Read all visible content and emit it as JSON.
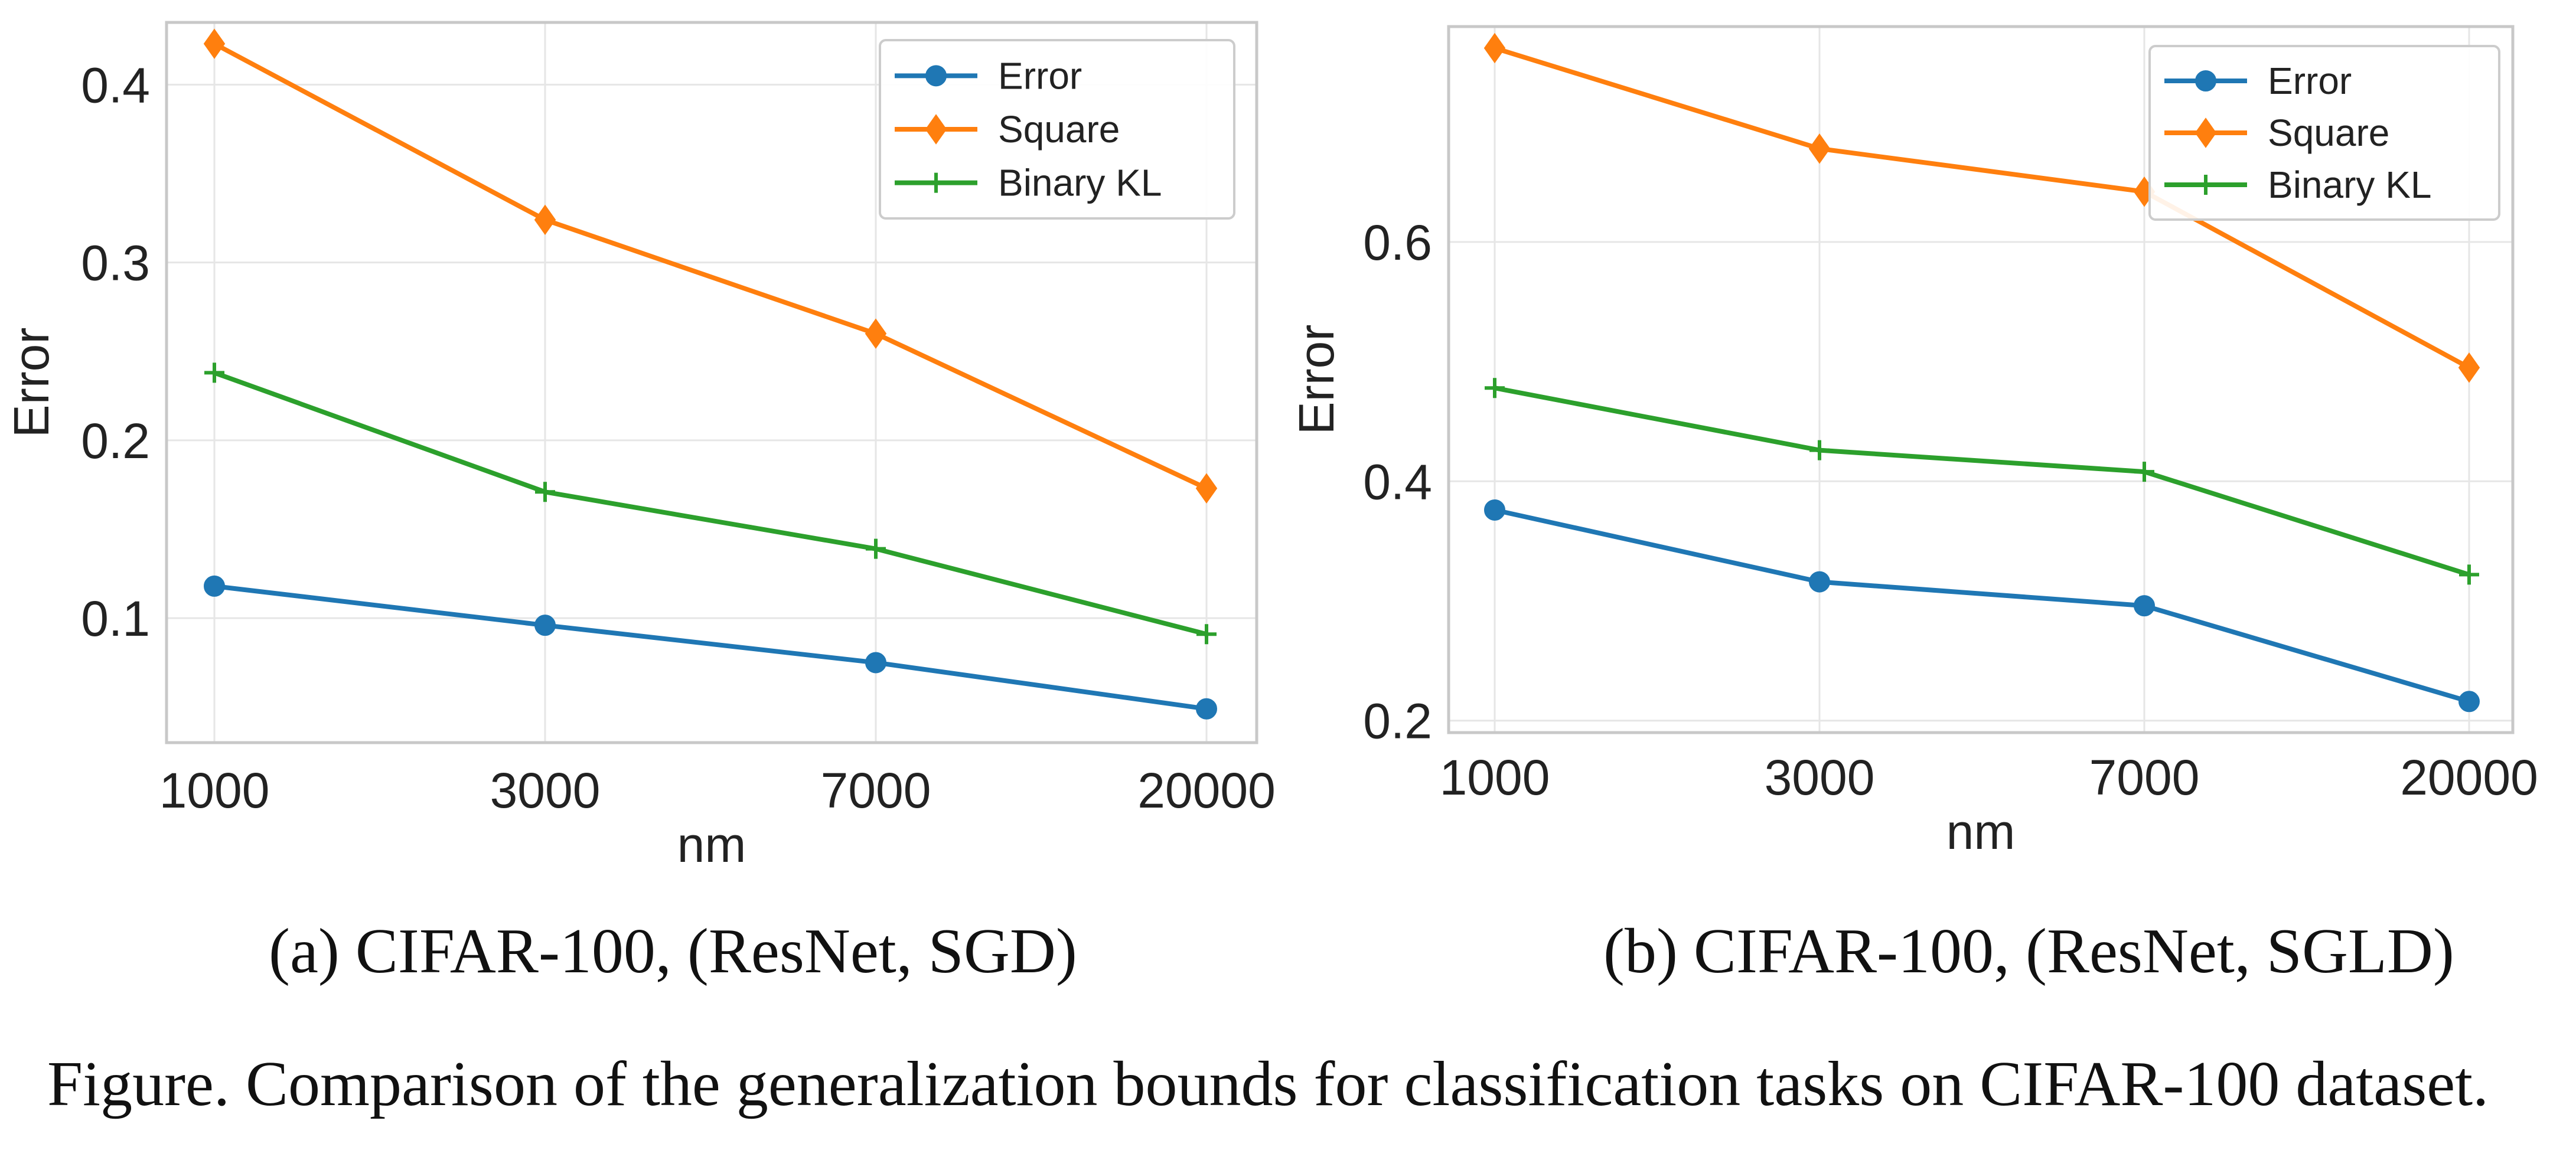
{
  "figure_caption": "Figure. Comparison of the generalization bounds for classification tasks on CIFAR-100 dataset.",
  "chart_data": [
    {
      "type": "line",
      "caption": "(a) CIFAR-100, (ResNet, SGD)",
      "xlabel": "nm",
      "ylabel": "Error",
      "x_scale": "categorical",
      "categories": [
        "1000",
        "3000",
        "7000",
        "20000"
      ],
      "ylim": [
        0.03,
        0.435
      ],
      "yticks": [
        0.1,
        0.2,
        0.3,
        0.4
      ],
      "ytick_labels": [
        "0.1",
        "0.2",
        "0.3",
        "0.4"
      ],
      "grid": true,
      "legend_position": "top-right",
      "series": [
        {
          "name": "Error",
          "color": "#1f77b4",
          "marker": "circle",
          "values": [
            0.118,
            0.096,
            0.075,
            0.049
          ]
        },
        {
          "name": "Square",
          "color": "#ff7f0e",
          "marker": "diamond",
          "values": [
            0.423,
            0.324,
            0.26,
            0.173
          ]
        },
        {
          "name": "Binary KL",
          "color": "#2ca02c",
          "marker": "plus",
          "values": [
            0.238,
            0.171,
            0.139,
            0.091
          ]
        }
      ]
    },
    {
      "type": "line",
      "caption": "(b) CIFAR-100, (ResNet, SGLD)",
      "xlabel": "nm",
      "ylabel": "Error",
      "x_scale": "categorical",
      "categories": [
        "1000",
        "3000",
        "7000",
        "20000"
      ],
      "ylim": [
        0.19,
        0.78
      ],
      "yticks": [
        0.2,
        0.4,
        0.6
      ],
      "ytick_labels": [
        "0.2",
        "0.4",
        "0.6"
      ],
      "grid": true,
      "legend_position": "top-right",
      "series": [
        {
          "name": "Error",
          "color": "#1f77b4",
          "marker": "circle",
          "values": [
            0.376,
            0.316,
            0.296,
            0.216
          ]
        },
        {
          "name": "Square",
          "color": "#ff7f0e",
          "marker": "diamond",
          "values": [
            0.762,
            0.678,
            0.642,
            0.495
          ]
        },
        {
          "name": "Binary KL",
          "color": "#2ca02c",
          "marker": "plus",
          "values": [
            0.478,
            0.426,
            0.408,
            0.322
          ]
        }
      ]
    }
  ]
}
